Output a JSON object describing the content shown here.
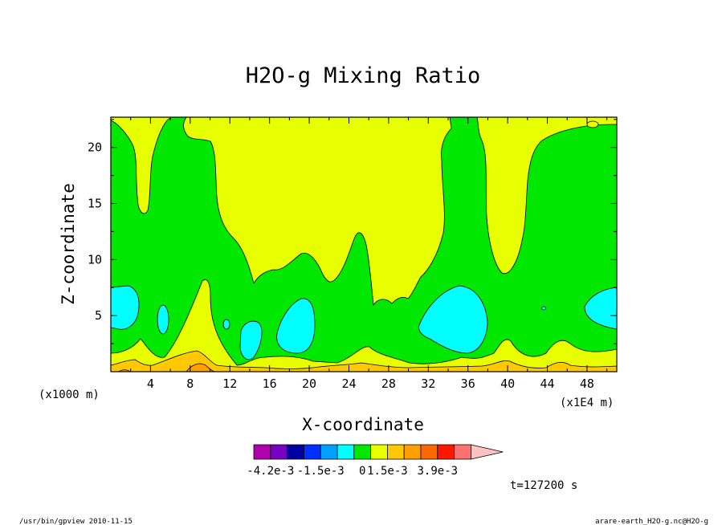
{
  "chart_data": {
    "type": "heatmap",
    "title": "H2O-g Mixing Ratio",
    "xlabel": "X-coordinate",
    "ylabel": "Z-coordinate",
    "x_unit_left": "(x1000 m)",
    "x_unit_right": "(x1E4 m)",
    "x_ticks": [
      4,
      8,
      12,
      16,
      20,
      24,
      28,
      32,
      36,
      40,
      44,
      48
    ],
    "y_ticks": [
      5,
      10,
      15,
      20
    ],
    "xlim": [
      0,
      51
    ],
    "ylim": [
      0,
      22.7
    ],
    "colorbar": {
      "colors": [
        "#b000b0",
        "#7800c0",
        "#0000a0",
        "#0030ff",
        "#00a0ff",
        "#00ffff",
        "#00e800",
        "#e8ff00",
        "#ffc800",
        "#ffa000",
        "#ff6800",
        "#ff1800",
        "#ff7070",
        "#ffc0c0"
      ],
      "labels": [
        "-4.2e-3",
        "-1.5e-3",
        "0",
        "1.5e-3",
        "3.9e-3"
      ]
    },
    "regions": {
      "background": "#00e800",
      "upper": "#e8ff00",
      "moist_patches": "#00ffff",
      "surface_yellow": "#e8ff00",
      "surface_orange": "#ffc800",
      "surface_dark": "#ffa000"
    },
    "time_label": "t=127200 s"
  },
  "footer": {
    "left": "/usr/bin/gpview  2010-11-15",
    "right": "arare-earth_H2O-g.nc@H2O-g"
  }
}
